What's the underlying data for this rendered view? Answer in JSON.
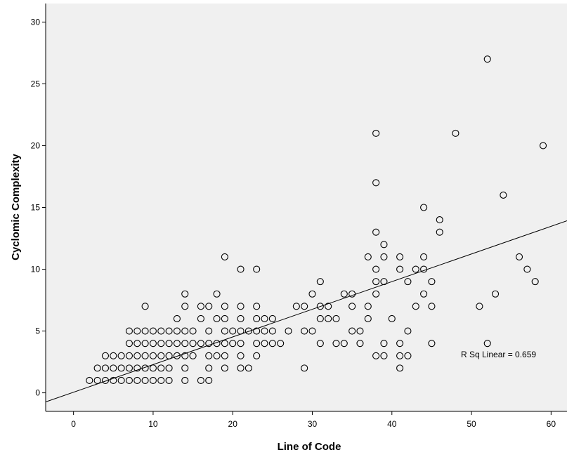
{
  "chart_data": {
    "type": "scatter",
    "xlabel": "Line of Code",
    "ylabel": "Cyclomic Complexity",
    "xlim": [
      -3.5,
      62
    ],
    "ylim": [
      -1.5,
      31.5
    ],
    "xticks": [
      0,
      10,
      20,
      30,
      40,
      50,
      60
    ],
    "yticks": [
      0,
      5,
      10,
      15,
      20,
      25,
      30
    ],
    "grid": false,
    "plot_background": "#f0f0f0",
    "marker": "open-circle",
    "fit_line": {
      "type": "linear",
      "slope": 0.2237,
      "intercept": 0.05,
      "color": "#000000"
    },
    "annotation": "R Sq Linear = 0.659",
    "points": [
      [
        2,
        1
      ],
      [
        3,
        1
      ],
      [
        4,
        1
      ],
      [
        5,
        1
      ],
      [
        6,
        1
      ],
      [
        7,
        1
      ],
      [
        8,
        1
      ],
      [
        9,
        1
      ],
      [
        10,
        1
      ],
      [
        11,
        1
      ],
      [
        12,
        1
      ],
      [
        3,
        2
      ],
      [
        4,
        2
      ],
      [
        5,
        2
      ],
      [
        6,
        2
      ],
      [
        7,
        2
      ],
      [
        8,
        2
      ],
      [
        9,
        2
      ],
      [
        10,
        2
      ],
      [
        11,
        2
      ],
      [
        12,
        2
      ],
      [
        4,
        3
      ],
      [
        5,
        3
      ],
      [
        6,
        3
      ],
      [
        7,
        3
      ],
      [
        8,
        3
      ],
      [
        9,
        3
      ],
      [
        10,
        3
      ],
      [
        11,
        3
      ],
      [
        12,
        3
      ],
      [
        13,
        3
      ],
      [
        14,
        3
      ],
      [
        15,
        3
      ],
      [
        17,
        3
      ],
      [
        18,
        3
      ],
      [
        19,
        3
      ],
      [
        21,
        3
      ],
      [
        23,
        3
      ],
      [
        7,
        4
      ],
      [
        8,
        4
      ],
      [
        9,
        4
      ],
      [
        10,
        4
      ],
      [
        11,
        4
      ],
      [
        12,
        4
      ],
      [
        13,
        4
      ],
      [
        14,
        4
      ],
      [
        15,
        4
      ],
      [
        16,
        4
      ],
      [
        17,
        4
      ],
      [
        18,
        4
      ],
      [
        19,
        4
      ],
      [
        20,
        4
      ],
      [
        21,
        4
      ],
      [
        23,
        4
      ],
      [
        24,
        4
      ],
      [
        25,
        4
      ],
      [
        26,
        4
      ],
      [
        7,
        5
      ],
      [
        8,
        5
      ],
      [
        9,
        5
      ],
      [
        10,
        5
      ],
      [
        11,
        5
      ],
      [
        12,
        5
      ],
      [
        13,
        5
      ],
      [
        14,
        5
      ],
      [
        15,
        5
      ],
      [
        17,
        5
      ],
      [
        19,
        5
      ],
      [
        20,
        5
      ],
      [
        21,
        5
      ],
      [
        22,
        5
      ],
      [
        23,
        5
      ],
      [
        24,
        5
      ],
      [
        25,
        5
      ],
      [
        27,
        5
      ],
      [
        14,
        1
      ],
      [
        16,
        1
      ],
      [
        17,
        1
      ],
      [
        14,
        2
      ],
      [
        17,
        2
      ],
      [
        19,
        2
      ],
      [
        21,
        2
      ],
      [
        22,
        2
      ],
      [
        13,
        6
      ],
      [
        16,
        6
      ],
      [
        18,
        6
      ],
      [
        19,
        6
      ],
      [
        21,
        6
      ],
      [
        23,
        6
      ],
      [
        24,
        6
      ],
      [
        25,
        6
      ],
      [
        9,
        7
      ],
      [
        14,
        7
      ],
      [
        16,
        7
      ],
      [
        17,
        7
      ],
      [
        19,
        7
      ],
      [
        21,
        7
      ],
      [
        23,
        7
      ],
      [
        14,
        8
      ],
      [
        18,
        8
      ],
      [
        19,
        11
      ],
      [
        21,
        10
      ],
      [
        23,
        10
      ],
      [
        28,
        7
      ],
      [
        29,
        7
      ],
      [
        31,
        7
      ],
      [
        32,
        7
      ],
      [
        37,
        7
      ],
      [
        29,
        2
      ],
      [
        29,
        5
      ],
      [
        30,
        5
      ],
      [
        31,
        4
      ],
      [
        33,
        4
      ],
      [
        34,
        4
      ],
      [
        35,
        5
      ],
      [
        36,
        5
      ],
      [
        36,
        4
      ],
      [
        30,
        8
      ],
      [
        31,
        9
      ],
      [
        31,
        6
      ],
      [
        32,
        6
      ],
      [
        33,
        6
      ],
      [
        34,
        8
      ],
      [
        35,
        8
      ],
      [
        35,
        7
      ],
      [
        37,
        6
      ],
      [
        37,
        11
      ],
      [
        38,
        3
      ],
      [
        38,
        8
      ],
      [
        38,
        9
      ],
      [
        38,
        10
      ],
      [
        38,
        13
      ],
      [
        38,
        17
      ],
      [
        38,
        21
      ],
      [
        39,
        3
      ],
      [
        39,
        4
      ],
      [
        39,
        9
      ],
      [
        39,
        11
      ],
      [
        39,
        12
      ],
      [
        40,
        6
      ],
      [
        41,
        2
      ],
      [
        41,
        3
      ],
      [
        41,
        4
      ],
      [
        41,
        10
      ],
      [
        41,
        11
      ],
      [
        42,
        3
      ],
      [
        42,
        5
      ],
      [
        42,
        9
      ],
      [
        43,
        7
      ],
      [
        43,
        10
      ],
      [
        44,
        8
      ],
      [
        44,
        10
      ],
      [
        44,
        11
      ],
      [
        44,
        15
      ],
      [
        45,
        4
      ],
      [
        45,
        7
      ],
      [
        45,
        9
      ],
      [
        46,
        13
      ],
      [
        46,
        14
      ],
      [
        48,
        21
      ],
      [
        51,
        7
      ],
      [
        52,
        4
      ],
      [
        52,
        27
      ],
      [
        53,
        8
      ],
      [
        54,
        16
      ],
      [
        56,
        11
      ],
      [
        57,
        10
      ],
      [
        58,
        9
      ],
      [
        59,
        20
      ]
    ]
  }
}
